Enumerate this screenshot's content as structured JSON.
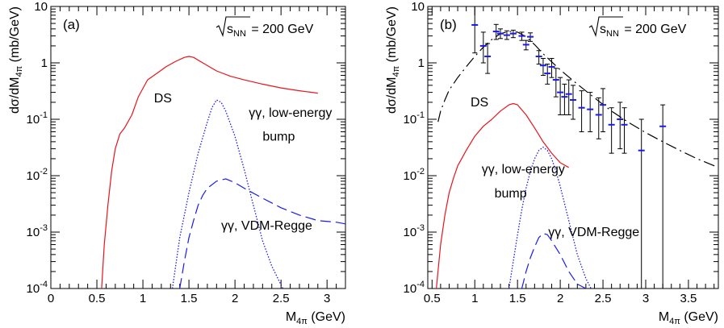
{
  "chart_data": [
    {
      "type": "line",
      "panel_label": "(a)",
      "energy": {
        "sqrt": "s",
        "sub": "NN",
        "value": "= 200 GeV"
      },
      "xlabel": {
        "main": "M",
        "sub": "4π",
        "unit": " (GeV)"
      },
      "ylabel": {
        "pre": "dσ/dM",
        "sub": "4π",
        "unit": " (mb/GeV)"
      },
      "xlim": [
        0,
        3.2
      ],
      "ylim": [
        0.0001,
        10
      ],
      "yscale": "log",
      "x_ticks": [
        0,
        0.5,
        1,
        1.5,
        2,
        2.5,
        3
      ],
      "x_tick_labels": [
        "0",
        "0.5",
        "1",
        "1.5",
        "2",
        "2.5",
        "3"
      ],
      "y_ticks": [
        {
          "v": 10,
          "base": "10",
          "exp": ""
        },
        {
          "v": 1,
          "base": "1",
          "exp": ""
        },
        {
          "v": 0.1,
          "base": "10",
          "exp": "-1"
        },
        {
          "v": 0.01,
          "base": "10",
          "exp": "-2"
        },
        {
          "v": 0.001,
          "base": "10",
          "exp": "-3"
        },
        {
          "v": 0.0001,
          "base": "10",
          "exp": "-4"
        }
      ],
      "annotations": [
        {
          "text": "DS",
          "x": 1.12,
          "y": 0.2
        },
        {
          "text": "γγ, low-energy",
          "x": 2.15,
          "y": 0.11
        },
        {
          "text": "bump",
          "x": 2.3,
          "y": 0.042
        },
        {
          "text": "γγ, VDM-Regge",
          "x": 1.85,
          "y": 0.0011
        }
      ],
      "series": [
        {
          "color": "#e8141c",
          "dash": "solid",
          "x": [
            0.55,
            0.58,
            0.62,
            0.66,
            0.7,
            0.75,
            0.8,
            0.88,
            0.95,
            1.05,
            1.15,
            1.25,
            1.35,
            1.45,
            1.5,
            1.55,
            1.65,
            1.8,
            1.95,
            2.1,
            2.3,
            2.5,
            2.7,
            2.9
          ],
          "y": [
            9e-05,
            0.0006,
            0.003,
            0.012,
            0.03,
            0.055,
            0.07,
            0.12,
            0.25,
            0.5,
            0.65,
            0.85,
            1.05,
            1.25,
            1.3,
            1.25,
            1.0,
            0.72,
            0.58,
            0.5,
            0.42,
            0.36,
            0.32,
            0.29
          ]
        },
        {
          "color": "#1a1aee",
          "dash": "dotted",
          "x": [
            1.32,
            1.4,
            1.5,
            1.6,
            1.7,
            1.75,
            1.8,
            1.85,
            1.9,
            2.0,
            2.1,
            2.2,
            2.3,
            2.4,
            2.52
          ],
          "y": [
            0.0001,
            0.0008,
            0.005,
            0.025,
            0.09,
            0.16,
            0.22,
            0.2,
            0.14,
            0.05,
            0.013,
            0.003,
            0.0007,
            0.00025,
            0.0001
          ]
        },
        {
          "color": "#1a1aee",
          "dash": "dashed",
          "x": [
            1.4,
            1.45,
            1.5,
            1.55,
            1.6,
            1.65,
            1.7,
            1.8,
            1.9,
            2.0,
            2.1,
            2.3,
            2.5,
            2.7,
            2.9,
            3.1,
            3.2
          ],
          "y": [
            0.0001,
            0.0003,
            0.0008,
            0.0016,
            0.003,
            0.0045,
            0.006,
            0.008,
            0.0088,
            0.0075,
            0.006,
            0.004,
            0.0027,
            0.002,
            0.0016,
            0.0015,
            0.0014
          ]
        }
      ]
    },
    {
      "type": "line",
      "panel_label": "(b)",
      "energy": {
        "sqrt": "s",
        "sub": "NN",
        "value": "= 200 GeV"
      },
      "xlabel": {
        "main": "M",
        "sub": "4π",
        "unit": " (GeV)"
      },
      "ylabel": {
        "pre": "dσ/dM",
        "sub": "4π",
        "unit": " (mb/GeV)"
      },
      "xlim": [
        0.45,
        3.85
      ],
      "ylim": [
        0.0001,
        10
      ],
      "yscale": "log",
      "x_ticks": [
        0.5,
        1,
        1.5,
        2,
        2.5,
        3,
        3.5
      ],
      "x_tick_labels": [
        "0.5",
        "1",
        "1.5",
        "2",
        "2.5",
        "3",
        "3.5"
      ],
      "y_ticks": [
        {
          "v": 10,
          "base": "10",
          "exp": ""
        },
        {
          "v": 1,
          "base": "1",
          "exp": ""
        },
        {
          "v": 0.1,
          "base": "10",
          "exp": "-1"
        },
        {
          "v": 0.01,
          "base": "10",
          "exp": "-2"
        },
        {
          "v": 0.001,
          "base": "10",
          "exp": "-3"
        },
        {
          "v": 0.0001,
          "base": "10",
          "exp": "-4"
        }
      ],
      "annotations": [
        {
          "text": "DS",
          "x": 0.95,
          "y": 0.17
        },
        {
          "text": "γγ, low-energy",
          "x": 1.08,
          "y": 0.011
        },
        {
          "text": "bump",
          "x": 1.23,
          "y": 0.0041
        },
        {
          "text": "γγ, VDM-Regge",
          "x": 1.86,
          "y": 0.00085
        }
      ],
      "series": [
        {
          "color": "#000000",
          "dash": "dashdot",
          "x": [
            0.57,
            0.6,
            0.65,
            0.7,
            0.8,
            0.9,
            1.0,
            1.1,
            1.2,
            1.3,
            1.4,
            1.5,
            1.6,
            1.7,
            1.8,
            2.0,
            2.2,
            2.4,
            2.6,
            2.8,
            3.0,
            3.2,
            3.4,
            3.6,
            3.85
          ],
          "y": [
            0.09,
            0.14,
            0.22,
            0.33,
            0.55,
            0.85,
            1.3,
            1.9,
            2.6,
            3.3,
            3.6,
            3.5,
            2.9,
            2.1,
            1.45,
            0.75,
            0.42,
            0.24,
            0.14,
            0.088,
            0.058,
            0.04,
            0.028,
            0.02,
            0.014
          ]
        },
        {
          "color": "#e8141c",
          "dash": "solid",
          "x": [
            0.55,
            0.6,
            0.65,
            0.7,
            0.75,
            0.8,
            0.9,
            1.0,
            1.1,
            1.2,
            1.3,
            1.4,
            1.45,
            1.5,
            1.6,
            1.7,
            1.8,
            1.9,
            2.0,
            2.1
          ],
          "y": [
            0.0001,
            0.0006,
            0.002,
            0.005,
            0.009,
            0.015,
            0.028,
            0.05,
            0.075,
            0.1,
            0.14,
            0.18,
            0.19,
            0.18,
            0.12,
            0.07,
            0.04,
            0.025,
            0.017,
            0.014
          ]
        },
        {
          "color": "#1a1aee",
          "dash": "dotted",
          "x": [
            1.4,
            1.45,
            1.5,
            1.55,
            1.6,
            1.65,
            1.7,
            1.75,
            1.8,
            1.85,
            1.9,
            1.95,
            2.0,
            2.1,
            2.2,
            2.3,
            2.36
          ],
          "y": [
            0.0001,
            0.0003,
            0.0009,
            0.0025,
            0.006,
            0.012,
            0.02,
            0.028,
            0.032,
            0.028,
            0.02,
            0.012,
            0.0065,
            0.0016,
            0.0004,
            0.00015,
            0.0001
          ]
        },
        {
          "color": "#1a1aee",
          "dash": "dashed",
          "x": [
            1.55,
            1.6,
            1.65,
            1.7,
            1.75,
            1.8,
            1.85,
            1.9,
            2.0,
            2.1,
            2.2,
            2.3
          ],
          "y": [
            0.0001,
            0.0002,
            0.00035,
            0.00055,
            0.0008,
            0.00095,
            0.0009,
            0.0007,
            0.0004,
            0.0002,
            0.00012,
            0.0001
          ]
        }
      ],
      "data_points": [
        {
          "x": 1.0,
          "y": 4.7,
          "lo": 1.5,
          "hi": 10
        },
        {
          "x": 1.1,
          "y": 2.0,
          "lo": 1.0,
          "hi": 3.5
        },
        {
          "x": 1.15,
          "y": 1.3,
          "lo": 0.65,
          "hi": 2.2
        },
        {
          "x": 1.25,
          "y": 3.6,
          "lo": 2.6,
          "hi": 4.8
        },
        {
          "x": 1.3,
          "y": 3.3,
          "lo": 2.7,
          "hi": 4.0
        },
        {
          "x": 1.375,
          "y": 3.1,
          "lo": 2.6,
          "hi": 3.7
        },
        {
          "x": 1.45,
          "y": 3.3,
          "lo": 2.8,
          "hi": 3.8
        },
        {
          "x": 1.55,
          "y": 3.0,
          "lo": 2.5,
          "hi": 3.5
        },
        {
          "x": 1.6,
          "y": 2.1,
          "lo": 1.7,
          "hi": 2.5
        },
        {
          "x": 1.65,
          "y": 2.9,
          "lo": 2.4,
          "hi": 3.4
        },
        {
          "x": 1.75,
          "y": 1.3,
          "lo": 0.95,
          "hi": 1.65
        },
        {
          "x": 1.8,
          "y": 0.9,
          "lo": 0.6,
          "hi": 1.2
        },
        {
          "x": 1.85,
          "y": 0.65,
          "lo": 0.42,
          "hi": 0.95
        },
        {
          "x": 1.9,
          "y": 0.85,
          "lo": 0.55,
          "hi": 1.2
        },
        {
          "x": 1.95,
          "y": 0.5,
          "lo": 0.25,
          "hi": 0.8
        },
        {
          "x": 2.0,
          "y": 0.3,
          "lo": 0.12,
          "hi": 0.55
        },
        {
          "x": 2.05,
          "y": 0.25,
          "lo": 0.12,
          "hi": 0.42
        },
        {
          "x": 2.1,
          "y": 0.28,
          "lo": 0.12,
          "hi": 0.5
        },
        {
          "x": 2.15,
          "y": 0.22,
          "lo": 0.1,
          "hi": 0.4
        },
        {
          "x": 2.25,
          "y": 0.16,
          "lo": 0.06,
          "hi": 0.32
        },
        {
          "x": 2.35,
          "y": 0.15,
          "lo": 0.06,
          "hi": 0.3
        },
        {
          "x": 2.45,
          "y": 0.12,
          "lo": 0.045,
          "hi": 0.24
        },
        {
          "x": 2.5,
          "y": 0.18,
          "lo": 0.06,
          "hi": 0.35
        },
        {
          "x": 2.6,
          "y": 0.08,
          "lo": 0.025,
          "hi": 0.16
        },
        {
          "x": 2.7,
          "y": 0.1,
          "lo": 0.03,
          "hi": 0.2
        },
        {
          "x": 2.75,
          "y": 0.08,
          "lo": 0.025,
          "hi": 0.16
        },
        {
          "x": 2.95,
          "y": 0.028,
          "lo": 0.0001,
          "hi": 0.1
        },
        {
          "x": 3.2,
          "y": 0.075,
          "lo": 0.0001,
          "hi": 0.18
        }
      ]
    }
  ]
}
